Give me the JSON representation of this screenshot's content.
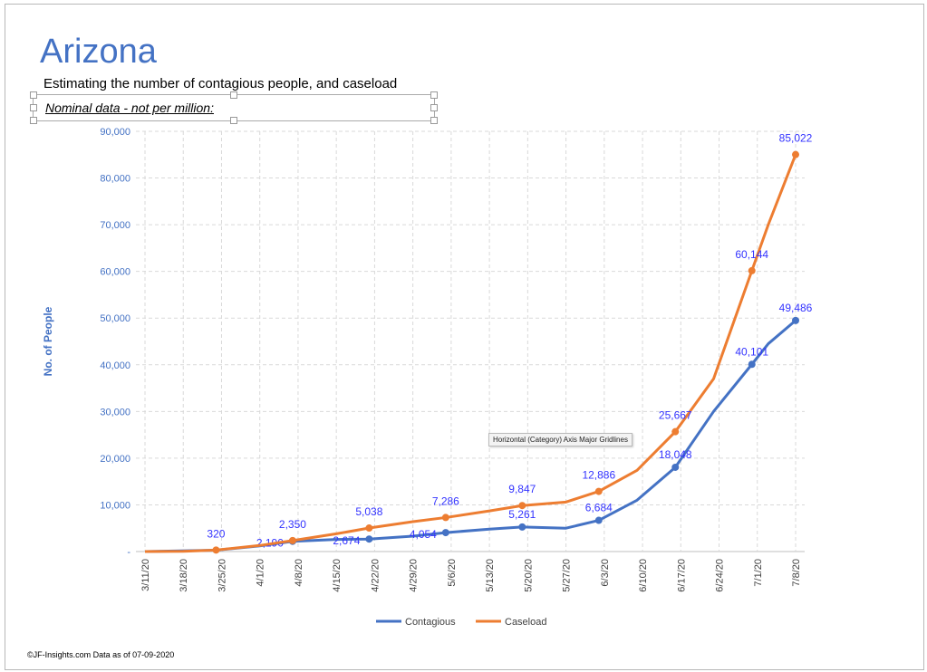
{
  "title": "Arizona",
  "subtitle": "Estimating  the number of contagious people, and caseload",
  "note": "Nominal data - not per million:",
  "footer": "©JF-Insights.com  Data as of 07-09-2020",
  "tooltip": "Horizontal (Category) Axis Major Gridlines",
  "chart_data": {
    "type": "line",
    "ylabel": "No. of People",
    "ylim": [
      0,
      90000
    ],
    "yticks": [
      0,
      10000,
      20000,
      30000,
      40000,
      50000,
      60000,
      70000,
      80000,
      90000
    ],
    "ytick_labels": [
      "-",
      "10,000",
      "20,000",
      "30,000",
      "40,000",
      "50,000",
      "60,000",
      "70,000",
      "80,000",
      "90,000"
    ],
    "x_start": "3/11/20",
    "x_days": 119,
    "xtick_labels": [
      "3/11/20",
      "3/18/20",
      "3/25/20",
      "4/1/20",
      "4/8/20",
      "4/15/20",
      "4/22/20",
      "4/29/20",
      "5/6/20",
      "5/13/20",
      "5/20/20",
      "5/27/20",
      "6/3/20",
      "6/10/20",
      "6/17/20",
      "6/24/20",
      "7/1/20",
      "7/8/20"
    ],
    "grid": true,
    "legend": "bottom",
    "series": [
      {
        "name": "Contagious",
        "color": "#4472c4",
        "points": [
          [
            0,
            0
          ],
          [
            13,
            300
          ],
          [
            21,
            1200
          ],
          [
            27,
            2190
          ],
          [
            35,
            2600
          ],
          [
            41,
            2674
          ],
          [
            49,
            3300
          ],
          [
            55,
            4054
          ],
          [
            63,
            4800
          ],
          [
            69,
            5261
          ],
          [
            77,
            5000
          ],
          [
            83,
            6684
          ],
          [
            90,
            11000
          ],
          [
            97,
            18048
          ],
          [
            104,
            30000
          ],
          [
            111,
            40101
          ],
          [
            114,
            44500
          ],
          [
            119,
            49486
          ]
        ],
        "labeled": [
          [
            27,
            "2,190"
          ],
          [
            41,
            "2,674"
          ],
          [
            55,
            "4,054"
          ],
          [
            69,
            "5,261"
          ],
          [
            83,
            "6,684"
          ],
          [
            97,
            "18,048"
          ],
          [
            111,
            "40,101"
          ],
          [
            119,
            "49,486"
          ]
        ]
      },
      {
        "name": "Caseload",
        "color": "#ed7d31",
        "points": [
          [
            0,
            0
          ],
          [
            7,
            50
          ],
          [
            13,
            320
          ],
          [
            21,
            1300
          ],
          [
            27,
            2350
          ],
          [
            35,
            3800
          ],
          [
            41,
            5038
          ],
          [
            49,
            6400
          ],
          [
            55,
            7286
          ],
          [
            63,
            8700
          ],
          [
            69,
            9847
          ],
          [
            77,
            10600
          ],
          [
            83,
            12886
          ],
          [
            90,
            17400
          ],
          [
            97,
            25667
          ],
          [
            104,
            37000
          ],
          [
            111,
            60144
          ],
          [
            114,
            70000
          ],
          [
            119,
            85022
          ]
        ],
        "labeled": [
          [
            13,
            "320"
          ],
          [
            27,
            "2,350"
          ],
          [
            41,
            "5,038"
          ],
          [
            55,
            "7,286"
          ],
          [
            69,
            "9,847"
          ],
          [
            83,
            "12,886"
          ],
          [
            97,
            "25,667"
          ],
          [
            111,
            "60,144"
          ],
          [
            119,
            "85,022"
          ]
        ]
      }
    ]
  }
}
